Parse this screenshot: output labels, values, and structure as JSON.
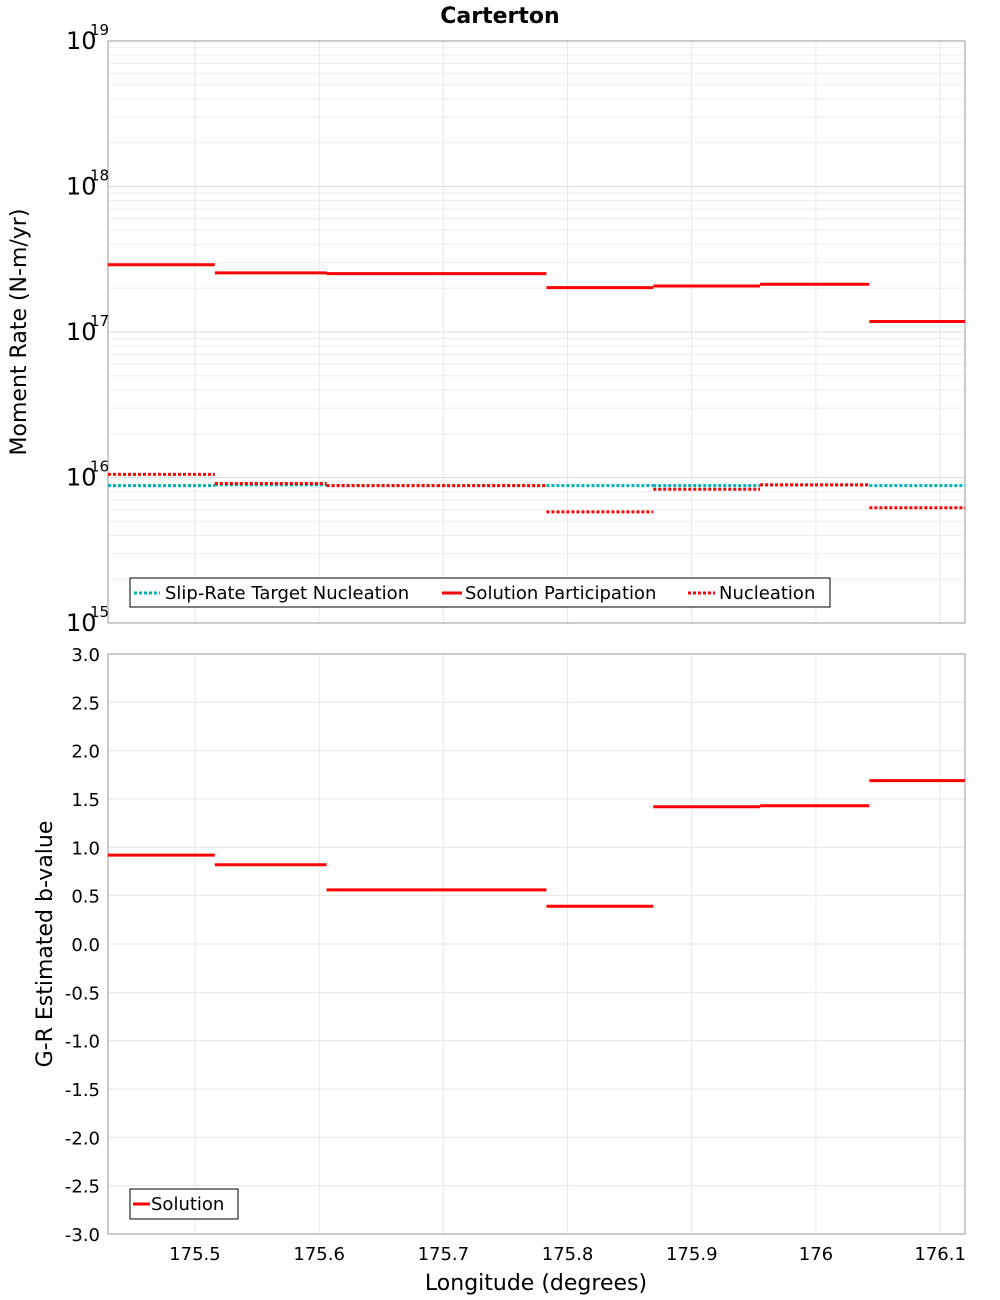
{
  "chart_data": [
    {
      "type": "line",
      "title": "Carterton",
      "ylabel": "Moment Rate (N-m/yr)",
      "xlabel": "",
      "yscale": "log",
      "ylim": [
        1000000000000000.0,
        1e+19
      ],
      "xlim": [
        175.43,
        176.12
      ],
      "ytick_labels": [
        {
          "base": "10",
          "exp": "15"
        },
        {
          "base": "10",
          "exp": "16"
        },
        {
          "base": "10",
          "exp": "17"
        },
        {
          "base": "10",
          "exp": "18"
        },
        {
          "base": "10",
          "exp": "19"
        }
      ],
      "grid": true,
      "legend": {
        "placement": "bottom-left",
        "entries": [
          "Slip-Rate Target Nucleation",
          "Solution Participation",
          "Nucleation"
        ]
      },
      "series": [
        {
          "name": "Slip-Rate Target Nucleation",
          "color": "#00b3b3",
          "style": "dotted",
          "segments": [
            {
              "x": [
                175.43,
                175.516
              ],
              "y": 8800000000000000.0
            },
            {
              "x": [
                175.516,
                175.606
              ],
              "y": 8900000000000000.0
            },
            {
              "x": [
                175.606,
                175.695
              ],
              "y": 8800000000000000.0
            },
            {
              "x": [
                175.695,
                175.783
              ],
              "y": 8800000000000000.0
            },
            {
              "x": [
                175.783,
                175.869
              ],
              "y": 8800000000000000.0
            },
            {
              "x": [
                175.869,
                175.955
              ],
              "y": 8800000000000000.0
            },
            {
              "x": [
                175.955,
                176.043
              ],
              "y": 8900000000000000.0
            },
            {
              "x": [
                176.043,
                176.12
              ],
              "y": 8800000000000000.0
            }
          ]
        },
        {
          "name": "Solution Participation",
          "color": "#ff0000",
          "style": "solid",
          "segments": [
            {
              "x": [
                175.43,
                175.516
              ],
              "y": 2.9e+17
            },
            {
              "x": [
                175.516,
                175.606
              ],
              "y": 2.55e+17
            },
            {
              "x": [
                175.606,
                175.695
              ],
              "y": 2.52e+17
            },
            {
              "x": [
                175.695,
                175.783
              ],
              "y": 2.52e+17
            },
            {
              "x": [
                175.783,
                175.869
              ],
              "y": 2.02e+17
            },
            {
              "x": [
                175.869,
                175.955
              ],
              "y": 2.07e+17
            },
            {
              "x": [
                175.955,
                176.043
              ],
              "y": 2.13e+17
            },
            {
              "x": [
                176.043,
                176.12
              ],
              "y": 1.18e+17
            }
          ]
        },
        {
          "name": "Nucleation",
          "color": "#ff0000",
          "style": "dotted",
          "segments": [
            {
              "x": [
                175.43,
                175.516
              ],
              "y": 1.05e+16
            },
            {
              "x": [
                175.516,
                175.606
              ],
              "y": 9100000000000000.0
            },
            {
              "x": [
                175.606,
                175.695
              ],
              "y": 8800000000000000.0
            },
            {
              "x": [
                175.695,
                175.783
              ],
              "y": 8800000000000000.0
            },
            {
              "x": [
                175.783,
                175.869
              ],
              "y": 5800000000000000.0
            },
            {
              "x": [
                175.869,
                175.955
              ],
              "y": 8300000000000000.0
            },
            {
              "x": [
                175.955,
                176.043
              ],
              "y": 8900000000000000.0
            },
            {
              "x": [
                176.043,
                176.12
              ],
              "y": 6200000000000000.0
            }
          ]
        }
      ]
    },
    {
      "type": "line",
      "title": "",
      "ylabel": "G-R Estimated b-value",
      "xlabel": "Longitude (degrees)",
      "yscale": "linear",
      "ylim": [
        -3.0,
        3.0
      ],
      "xlim": [
        175.43,
        176.12
      ],
      "yticks": [
        -3.0,
        -2.5,
        -2.0,
        -1.5,
        -1.0,
        -0.5,
        0.0,
        0.5,
        1.0,
        1.5,
        2.0,
        2.5,
        3.0
      ],
      "ytick_labels": [
        "-3.0",
        "-2.5",
        "-2.0",
        "-1.5",
        "-1.0",
        "-0.5",
        "0.0",
        "0.5",
        "1.0",
        "1.5",
        "2.0",
        "2.5",
        "3.0"
      ],
      "xticks": [
        175.5,
        175.6,
        175.7,
        175.8,
        175.9,
        176.0,
        176.1
      ],
      "xtick_labels": [
        "175.5",
        "175.6",
        "175.7",
        "175.8",
        "175.9",
        "176",
        "176.1"
      ],
      "grid": true,
      "legend": {
        "placement": "bottom-left",
        "entries": [
          "Solution"
        ]
      },
      "series": [
        {
          "name": "Solution",
          "color": "#ff0000",
          "style": "solid",
          "segments": [
            {
              "x": [
                175.43,
                175.516
              ],
              "y": 0.92
            },
            {
              "x": [
                175.516,
                175.606
              ],
              "y": 0.82
            },
            {
              "x": [
                175.606,
                175.695
              ],
              "y": 0.56
            },
            {
              "x": [
                175.695,
                175.783
              ],
              "y": 0.56
            },
            {
              "x": [
                175.783,
                175.869
              ],
              "y": 0.39
            },
            {
              "x": [
                175.869,
                175.955
              ],
              "y": 1.42
            },
            {
              "x": [
                175.955,
                176.043
              ],
              "y": 1.43
            },
            {
              "x": [
                176.043,
                176.12
              ],
              "y": 1.69
            }
          ]
        }
      ]
    }
  ]
}
